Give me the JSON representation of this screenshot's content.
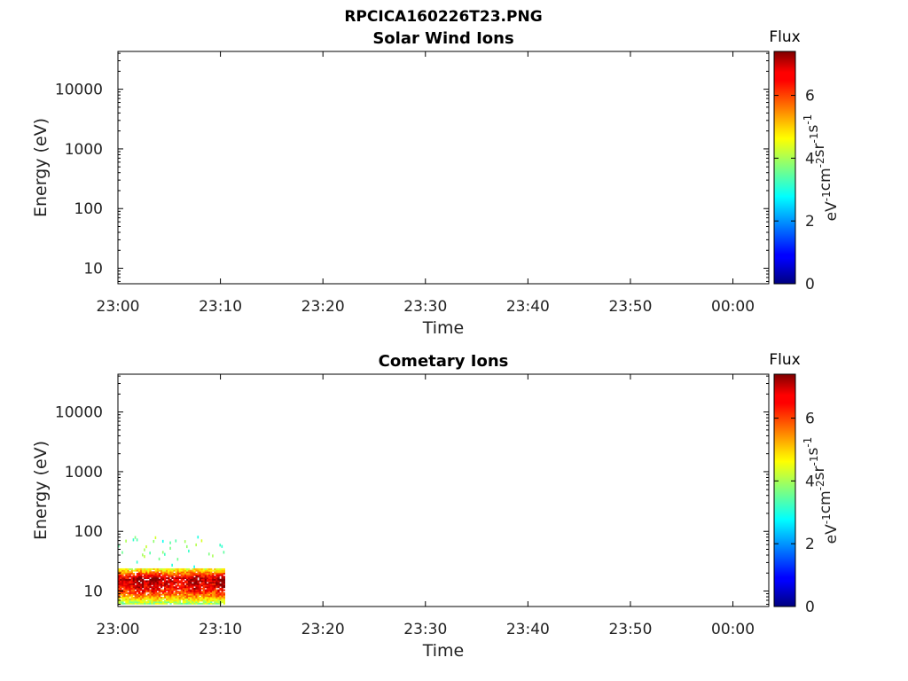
{
  "figure": {
    "title": "RPCICA160226T23.PNG"
  },
  "chart_data": [
    {
      "type": "heatmap",
      "title": "Solar Wind Ions",
      "xlabel": "Time",
      "ylabel": "Energy (eV)",
      "x_ticks": [
        "23:00",
        "23:10",
        "23:20",
        "23:30",
        "23:40",
        "23:50",
        "00:00"
      ],
      "x_range_minutes": [
        0,
        63.5
      ],
      "y_scale": "log",
      "y_ticks": [
        10,
        100,
        1000,
        10000
      ],
      "ylim": [
        5.5,
        43000
      ],
      "colorbar": {
        "label": "Flux",
        "unit_base": [
          "eV",
          "cm",
          "sr",
          "s"
        ],
        "unit_exponents": [
          "-1",
          "-2",
          "-1",
          "-1"
        ],
        "ticks": [
          0,
          2,
          4,
          6
        ],
        "range": [
          0,
          7.4
        ],
        "colormap": "jet"
      },
      "cells": []
    },
    {
      "type": "heatmap",
      "title": "Cometary Ions",
      "xlabel": "Time",
      "ylabel": "Energy (eV)",
      "x_ticks": [
        "23:00",
        "23:10",
        "23:20",
        "23:30",
        "23:40",
        "23:50",
        "00:00"
      ],
      "x_range_minutes": [
        0,
        63.5
      ],
      "y_scale": "log",
      "y_ticks": [
        10,
        100,
        1000,
        10000
      ],
      "ylim": [
        5.5,
        43000
      ],
      "colorbar": {
        "label": "Flux",
        "unit_base": [
          "eV",
          "cm",
          "sr",
          "s"
        ],
        "unit_exponents": [
          "-1",
          "-2",
          "-1",
          "-1"
        ],
        "ticks": [
          0,
          2,
          4,
          6
        ],
        "range": [
          0,
          7.4
        ],
        "colormap": "jet"
      },
      "data_time_span_minutes": [
        0,
        10.3
      ],
      "flux_profile_by_energy": [
        {
          "e": 6.5,
          "flux": 4.0
        },
        {
          "e": 8,
          "flux": 5.3
        },
        {
          "e": 10,
          "flux": 6.0
        },
        {
          "e": 13,
          "flux": 6.6
        },
        {
          "e": 16,
          "flux": 6.9
        },
        {
          "e": 19,
          "flux": 5.9
        },
        {
          "e": 23,
          "flux": 4.6
        },
        {
          "e": 28,
          "flux": 3.6
        },
        {
          "e": 35,
          "flux": 3.1
        },
        {
          "e": 45,
          "flux": 2.9
        }
      ],
      "hot_spots_minutes": [
        2.1,
        3.5,
        7.4,
        10.1
      ]
    }
  ]
}
